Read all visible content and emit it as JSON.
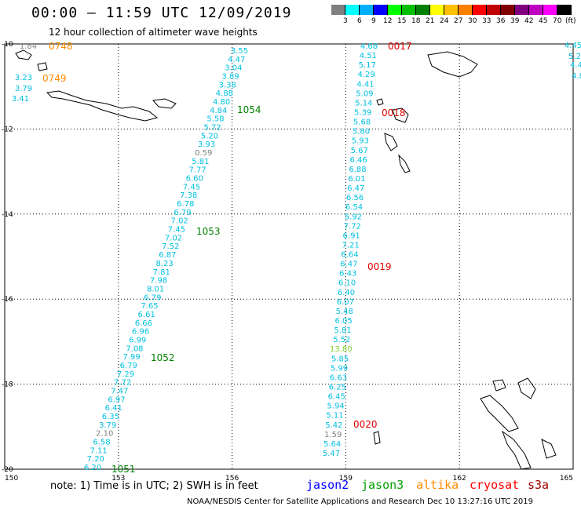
{
  "header": {
    "title": "00:00 – 11:59 UTC 12/09/2019",
    "subtitle": "12 hour collection of altimeter wave heights"
  },
  "legend": {
    "colors": [
      "#808080",
      "#00ffff",
      "#00b0ff",
      "#0000ff",
      "#00ff00",
      "#00c000",
      "#008000",
      "#ffff00",
      "#ffc000",
      "#ff8000",
      "#ff0000",
      "#c00000",
      "#800000",
      "#800080",
      "#c000c0",
      "#ff00ff",
      "#000000"
    ],
    "labels": [
      "3",
      "6",
      "9",
      "12",
      "15",
      "18",
      "21",
      "24",
      "27",
      "30",
      "33",
      "36",
      "39",
      "42",
      "45",
      "70",
      "(ft)"
    ]
  },
  "map": {
    "lon_labels": [
      "150",
      "153",
      "156",
      "159",
      "162",
      "165"
    ],
    "lat_labels": [
      "-10",
      "-12",
      "-14",
      "-16",
      "-18",
      "-20"
    ],
    "point_color": "#00c0e0",
    "gray_color": "#808080",
    "yellowgreen_color": "#80d030",
    "track1_values": [
      "3.55",
      "4.47",
      "3.04",
      "3.89",
      "3.38",
      "4.88",
      "4.80",
      "4.84",
      "5.58",
      "5.72",
      "5.20",
      "3.93",
      "0.59",
      "5.81",
      "7.77",
      "6.60",
      "7.45",
      "7.38",
      "6.78",
      "6.79",
      "7.02",
      "7.45",
      "7.02",
      "7.52",
      "6.87",
      "8.23",
      "7.81",
      "7.98",
      "8.01",
      "6.79",
      "7.65",
      "6.61",
      "6.66",
      "6.96",
      "6.99",
      "7.08",
      "7.99",
      "6.79",
      "7.29",
      "7.72",
      "7.47",
      "6.97",
      "6.41",
      "6.35",
      "3.79",
      "2.10",
      "6.58",
      "7.11",
      "7.20",
      "6.20"
    ],
    "track2_values": [
      "4.68",
      "4.51",
      "5.17",
      "4.29",
      "4.41",
      "5.09",
      "5.14",
      "5.39",
      "5.68",
      "5.80",
      "5.93",
      "5.67",
      "6.46",
      "6.88",
      "6.01",
      "6.47",
      "6.56",
      "6.54",
      "5.92",
      "7.72",
      "6.91",
      "7.21",
      "6.64",
      "6.47",
      "6.43",
      "6.10",
      "6.40",
      "6.07",
      "5.48",
      "6.05",
      "5.81",
      "5.52",
      "13.80",
      "5.85",
      "5.99",
      "6.63",
      "6.25",
      "6.45",
      "5.94",
      "5.11",
      "5.42",
      "1.59",
      "5.64",
      "5.47"
    ],
    "track3_values": [
      "1.84",
      "3.23",
      "3.79",
      "3.41"
    ],
    "track4_values": [
      "4.45",
      "5.2",
      "4.4",
      "4.8"
    ],
    "time_labels": [
      {
        "text": "0748",
        "color": "#ff8c00"
      },
      {
        "text": "0749",
        "color": "#ff8c00"
      },
      {
        "text": "1054",
        "color": "#008000"
      },
      {
        "text": "1053",
        "color": "#008000"
      },
      {
        "text": "1052",
        "color": "#008000"
      },
      {
        "text": "1051",
        "color": "#008000"
      },
      {
        "text": "0017",
        "color": "#e00000"
      },
      {
        "text": "0018",
        "color": "#e00000"
      },
      {
        "text": "0019",
        "color": "#e00000"
      },
      {
        "text": "0020",
        "color": "#e00000"
      }
    ]
  },
  "note": "note:  1) Time is in UTC;  2) SWH is in feet",
  "satellites": [
    {
      "name": "jason2",
      "color": "#0000ff"
    },
    {
      "name": "jason3",
      "color": "#00a000"
    },
    {
      "name": "altika",
      "color": "#ff8c00"
    },
    {
      "name": "cryosat",
      "color": "#ff0000"
    },
    {
      "name": "s3a",
      "color": "#a00000"
    }
  ],
  "footer": "NOAA/NESDIS Center for Satellite Applications and Research    Dec 10 13:27:16 UTC 2019"
}
